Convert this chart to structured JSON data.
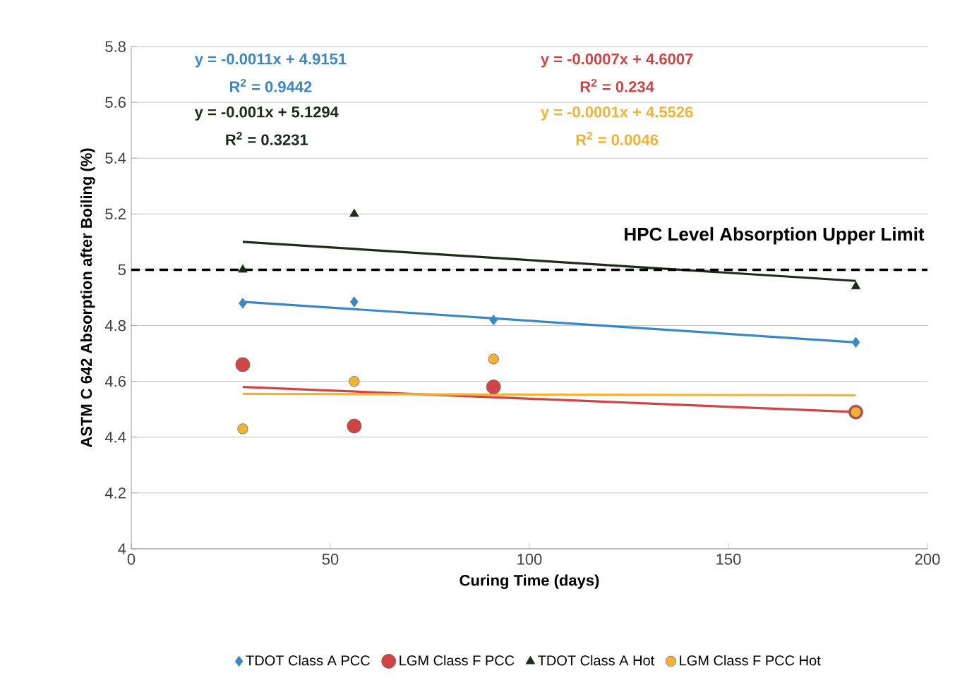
{
  "chart_data": {
    "type": "scatter",
    "xlabel": "Curing Time (days)",
    "ylabel": "ASTM C 642 Absorption after Boiling (%)",
    "xlim": [
      0,
      200
    ],
    "xticks": [
      0,
      50,
      100,
      150,
      200
    ],
    "ylim": [
      4,
      5.8
    ],
    "yticks": [
      4,
      4.2,
      4.4,
      4.6,
      4.8,
      5,
      5.2,
      5.4,
      5.6,
      5.8
    ],
    "grid": "y",
    "legend": "bottom",
    "series": [
      {
        "name": "TDOT Class A PCC",
        "color": "#3b87c4",
        "marker": "diamond",
        "x": [
          28,
          56,
          91,
          182
        ],
        "values": [
          4.88,
          4.885,
          4.82,
          4.74
        ]
      },
      {
        "name": "LGM Class F PCC",
        "color": "#cf4545",
        "marker": "circle",
        "x": [
          28,
          56,
          91,
          182
        ],
        "values": [
          4.66,
          4.44,
          4.58,
          4.49
        ]
      },
      {
        "name": "TDOT Class A Hot",
        "color": "#1e2a1e",
        "marker": "triangle",
        "x": [
          28,
          56,
          182
        ],
        "values": [
          5.0,
          5.2,
          4.94
        ]
      },
      {
        "name": "LGM Class F PCC Hot",
        "color": "#f2b233",
        "marker": "circle",
        "x": [
          28,
          56,
          91,
          182
        ],
        "values": [
          4.43,
          4.6,
          4.68,
          4.49
        ]
      },
      {
        "type": "line",
        "color": "#3b87c4",
        "marker": "none",
        "x": [
          28,
          182
        ],
        "values": [
          4.885,
          4.74
        ]
      },
      {
        "type": "line",
        "color": "#cf4545",
        "marker": "none",
        "x": [
          28,
          182
        ],
        "values": [
          4.58,
          4.49
        ]
      },
      {
        "type": "line",
        "color": "#1e2a1e",
        "marker": "none",
        "x": [
          28,
          182
        ],
        "values": [
          5.1,
          4.96
        ]
      },
      {
        "type": "line",
        "color": "#f2b233",
        "marker": "none",
        "x": [
          28,
          182
        ],
        "values": [
          4.555,
          4.55
        ]
      }
    ],
    "ref_lines": [
      {
        "axis": "y",
        "value": 5,
        "label": "HPC Level Absorption Upper Limit",
        "color": "#000000",
        "line_style": "dashed"
      }
    ],
    "annotations": [
      "y = -0.0011x + 4.9151",
      "R$^{2}$ = 0.9442",
      "y = -0.0007x + 4.6007",
      "R$^{2}$ = 0.234",
      "y = -0.001x + 5.1294",
      "R$^{2}$ = 0.3231",
      "y = -0.0001x + 4.5526",
      "R$^{2}$ = 0.0046"
    ]
  }
}
